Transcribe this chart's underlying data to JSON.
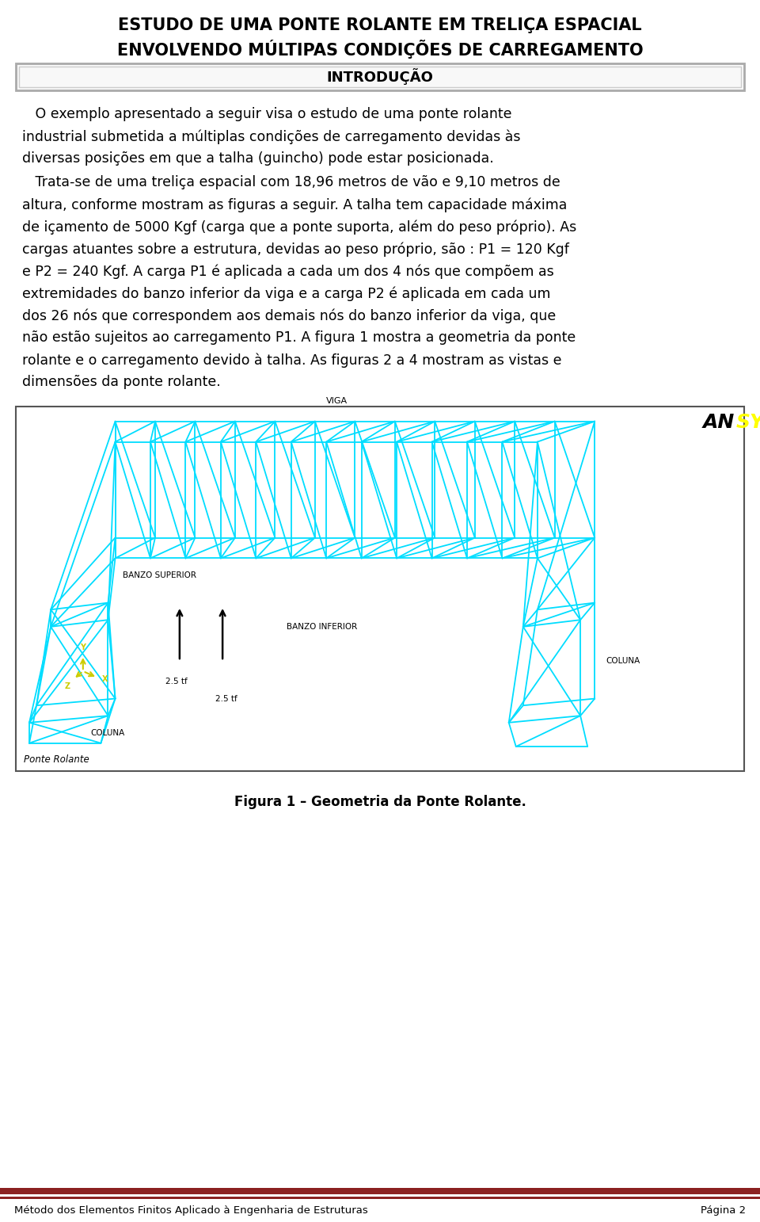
{
  "title_line1": "ESTUDO DE UMA PONTE ROLANTE EM TRELIÇA ESPACIAL",
  "title_line2": "ENVOLVENDO MÚLTIPAS CONDIÇÕES DE CARREGAMENTO",
  "section_title": "INTRODUÇÃO",
  "para1_lines": [
    "   O exemplo apresentado a seguir visa o estudo de uma ponte rolante",
    "industrial submetida a múltiplas condições de carregamento devidas às",
    "diversas posições em que a talha (guincho) pode estar posicionada."
  ],
  "para2_lines": [
    "   Trata-se de uma treliça espacial com 18,96 metros de vão e 9,10 metros de",
    "altura, conforme mostram as figuras a seguir. A talha tem capacidade máxima",
    "de içamento de 5000 Kgf (carga que a ponte suporta, além do peso próprio). As",
    "cargas atuantes sobre a estrutura, devidas ao peso próprio, são : P1 = 120 Kgf",
    "e P2 = 240 Kgf. A carga P1 é aplicada a cada um dos 4 nós que compõem as",
    "extremidades do banzo inferior da viga e a carga P2 é aplicada em cada um",
    "dos 26 nós que correspondem aos demais nós do banzo inferior da viga, que",
    "não estão sujeitos ao carregamento P1. A figura 1 mostra a geometria da ponte",
    "rolante e o carregamento devido à talha. As figuras 2 a 4 mostram as vistas e",
    "dimensões da ponte rolante."
  ],
  "figure_caption": "Figura 1 – Geometria da Ponte Rolante.",
  "footer_left": "Método dos Elementos Finitos Aplicado à Engenharia de Estruturas",
  "footer_right": "Página 2",
  "bg_color": "#ffffff",
  "text_color": "#000000",
  "title_color": "#000000",
  "footer_bar_color1": "#8b2020",
  "footer_bar_color2": "#8b2020",
  "truss_color": "#00ddff",
  "truss_bg": "#ffffff",
  "ansys_an_color": "#000000",
  "ansys_sys_color": "#ffff00",
  "label_color": "#000000",
  "axis_y_color": "#cccc00",
  "axis_x_color": "#cccc00"
}
